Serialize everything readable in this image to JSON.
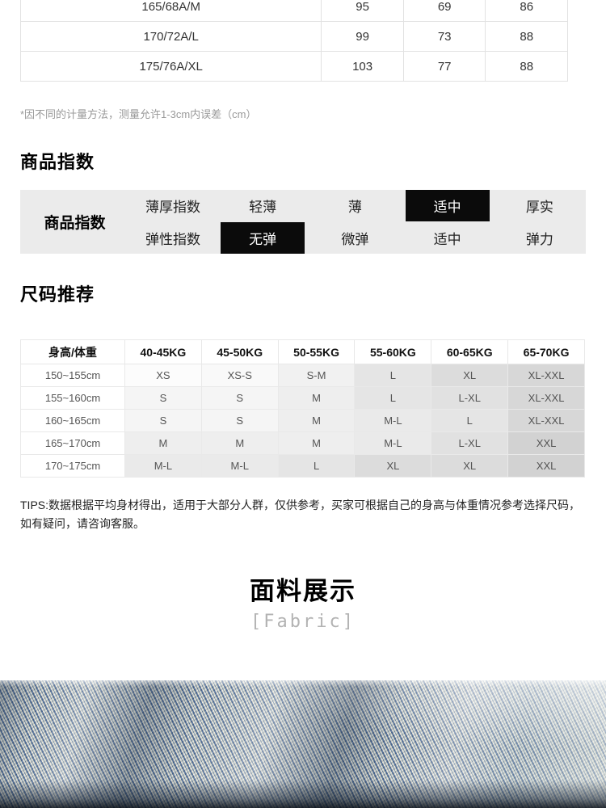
{
  "measurement_table": {
    "rows": [
      {
        "size": "165/68A/M",
        "values": [
          "95",
          "69",
          "86"
        ]
      },
      {
        "size": "170/72A/L",
        "values": [
          "99",
          "73",
          "88"
        ]
      },
      {
        "size": "175/76A/XL",
        "values": [
          "103",
          "77",
          "88"
        ]
      }
    ]
  },
  "note": "*因不同的计量方法，测量允许1-3cm内误差（cm）",
  "product_index": {
    "heading": "商品指数",
    "main_label": "商品指数",
    "rows": [
      {
        "label": "薄厚指数",
        "options": [
          "轻薄",
          "薄",
          "适中",
          "厚实"
        ],
        "selected_index": 2
      },
      {
        "label": "弹性指数",
        "options": [
          "无弹",
          "微弹",
          "适中",
          "弹力"
        ],
        "selected_index": 0
      }
    ],
    "colors": {
      "table_bg": "#ebebeb",
      "selected_bg": "#0b0b0b",
      "selected_fg": "#ffffff"
    }
  },
  "size_recommendation": {
    "heading": "尺码推荐",
    "header": [
      "身高/体重",
      "40-45KG",
      "45-50KG",
      "50-55KG",
      "55-60KG",
      "60-65KG",
      "65-70KG"
    ],
    "rows": [
      {
        "height": "150~155cm",
        "cells": [
          {
            "v": "XS",
            "shade": 0
          },
          {
            "v": "XS-S",
            "shade": 1
          },
          {
            "v": "S-M",
            "shade": 3
          },
          {
            "v": "L",
            "shade": 6
          },
          {
            "v": "XL",
            "shade": 8
          },
          {
            "v": "XL-XXL",
            "shade": 9
          }
        ]
      },
      {
        "height": "155~160cm",
        "cells": [
          {
            "v": "S",
            "shade": 2
          },
          {
            "v": "S",
            "shade": 2
          },
          {
            "v": "M",
            "shade": 4
          },
          {
            "v": "L",
            "shade": 6
          },
          {
            "v": "L-XL",
            "shade": 7
          },
          {
            "v": "XL-XXL",
            "shade": 9
          }
        ]
      },
      {
        "height": "160~165cm",
        "cells": [
          {
            "v": "S",
            "shade": 2
          },
          {
            "v": "S",
            "shade": 2
          },
          {
            "v": "M",
            "shade": 4
          },
          {
            "v": "M-L",
            "shade": 5
          },
          {
            "v": "L",
            "shade": 6
          },
          {
            "v": "XL-XXL",
            "shade": 9
          }
        ]
      },
      {
        "height": "165~170cm",
        "cells": [
          {
            "v": "M",
            "shade": 4
          },
          {
            "v": "M",
            "shade": 4
          },
          {
            "v": "M",
            "shade": 4
          },
          {
            "v": "M-L",
            "shade": 5
          },
          {
            "v": "L-XL",
            "shade": 7
          },
          {
            "v": "XXL",
            "shade": 10
          }
        ]
      },
      {
        "height": "170~175cm",
        "cells": [
          {
            "v": "M-L",
            "shade": 5
          },
          {
            "v": "M-L",
            "shade": 5
          },
          {
            "v": "L",
            "shade": 6
          },
          {
            "v": "XL",
            "shade": 8
          },
          {
            "v": "XL",
            "shade": 8
          },
          {
            "v": "XXL",
            "shade": 10
          }
        ]
      }
    ],
    "shade_palette": [
      "#fcfcfc",
      "#f9f9f9",
      "#f5f5f5",
      "#f1f1f1",
      "#eeeeee",
      "#eaeaea",
      "#e5e5e5",
      "#e1e1e1",
      "#dcdcdc",
      "#d7d7d7",
      "#d2d2d2"
    ]
  },
  "tips": {
    "line1": "TIPS:数据根据平均身材得出，适用于大部分人群，仅供参考，买家可根据自己的身高与体重情况参考选择尺码，",
    "line2": "如有疑问，请咨询客服。"
  },
  "fabric_section": {
    "title": "面料展示",
    "subtitle": "[Fabric]",
    "denim_colors": {
      "thread_blue": "#4e6c96",
      "thread_white": "#e8e6da",
      "base": "#8fa6bb",
      "shadow": "#101820"
    }
  }
}
